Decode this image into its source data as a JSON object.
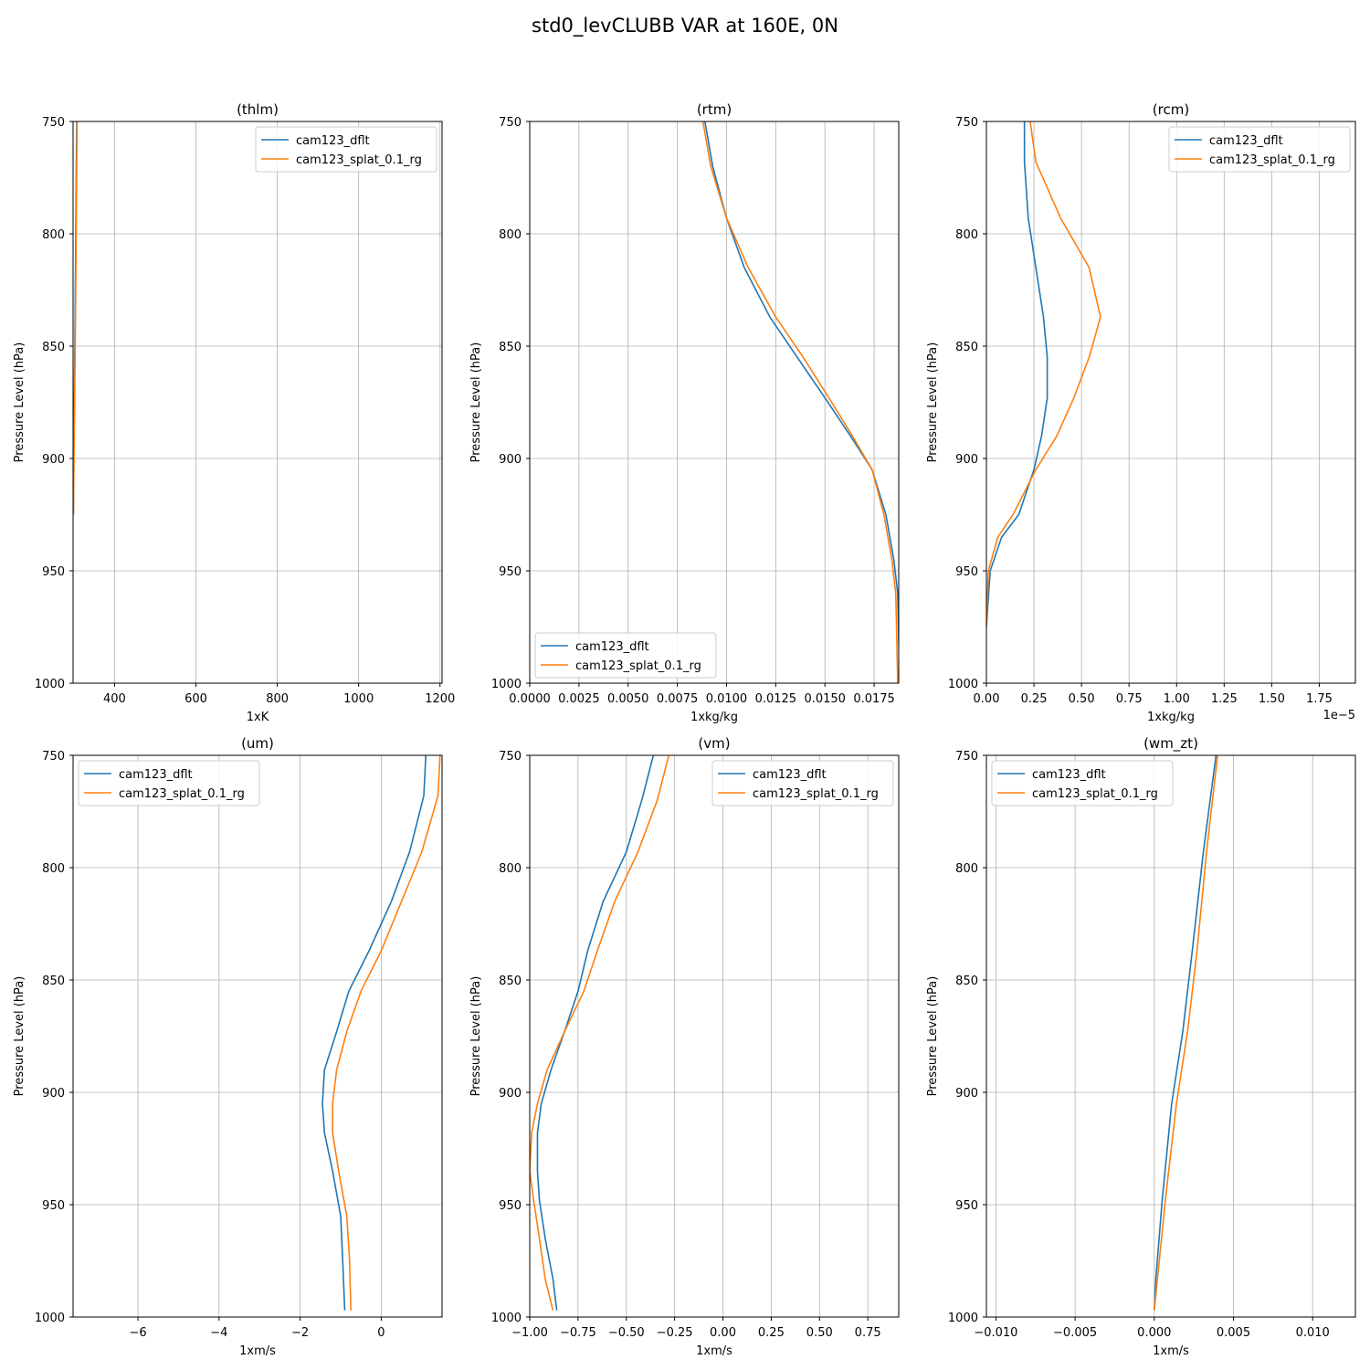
{
  "figure": {
    "title": "std0_levCLUBB VAR at 160E, 0N"
  },
  "colors": {
    "cam123_dflt": "#1f77b4",
    "cam123_splat_0.1_rg": "#ff7f0e",
    "grid": "#b0b0b0"
  },
  "chart_data": [
    {
      "type": "line",
      "title": "(thlm)",
      "xlabel": "1xK",
      "ylabel": "Pressure Level (hPa)",
      "xlim": [
        298,
        1205
      ],
      "ylim": [
        1000,
        750
      ],
      "xticks": [
        400,
        600,
        800,
        1000,
        1200
      ],
      "xtick_labels": [
        "400",
        "600",
        "800",
        "1000",
        "1200"
      ],
      "yticks": [
        750,
        800,
        850,
        900,
        950,
        1000
      ],
      "ytick_labels": [
        "750",
        "800",
        "850",
        "900",
        "950",
        "1000"
      ],
      "offset_label": "",
      "grid": true,
      "legend": "upper right",
      "series": [
        {
          "name": "cam123_dflt",
          "x": [
            307,
            306,
            305,
            304,
            303,
            302,
            301,
            300,
            299,
            299
          ],
          "y": [
            750,
            770,
            793,
            815,
            837,
            855,
            873,
            890,
            905,
            925
          ]
        },
        {
          "name": "cam123_splat_0.1_rg",
          "x": [
            308,
            307,
            306,
            305,
            304,
            303,
            302,
            301,
            300,
            299
          ],
          "y": [
            750,
            770,
            793,
            815,
            837,
            855,
            873,
            890,
            905,
            925
          ]
        }
      ]
    },
    {
      "type": "line",
      "title": "(rtm)",
      "xlabel": "1xkg/kg",
      "ylabel": "Pressure Level (hPa)",
      "xlim": [
        0,
        0.01875
      ],
      "ylim": [
        1000,
        750
      ],
      "xticks": [
        0,
        0.0025,
        0.005,
        0.0075,
        0.01,
        0.0125,
        0.015,
        0.0175
      ],
      "xtick_labels": [
        "0.0000",
        "0.0025",
        "0.0050",
        "0.0075",
        "0.0100",
        "0.0125",
        "0.0150",
        "0.0175"
      ],
      "yticks": [
        750,
        800,
        850,
        900,
        950,
        1000
      ],
      "ytick_labels": [
        "750",
        "800",
        "850",
        "900",
        "950",
        "1000"
      ],
      "offset_label": "",
      "grid": true,
      "legend": "lower left",
      "series": [
        {
          "name": "cam123_dflt",
          "x": [
            0.0089,
            0.0093,
            0.01,
            0.0109,
            0.0122,
            0.0136,
            0.015,
            0.0163,
            0.0174,
            0.0181,
            0.0185,
            0.0187,
            0.0188
          ],
          "y": [
            750,
            770,
            793,
            815,
            837,
            855,
            873,
            890,
            905,
            925,
            945,
            960,
            1000
          ]
        },
        {
          "name": "cam123_splat_0.1_rg",
          "x": [
            0.0088,
            0.0092,
            0.01,
            0.0111,
            0.0125,
            0.0139,
            0.0152,
            0.0164,
            0.0174,
            0.018,
            0.0184,
            0.0186,
            0.0187
          ],
          "y": [
            750,
            770,
            793,
            815,
            837,
            855,
            873,
            890,
            905,
            925,
            945,
            960,
            1000
          ]
        }
      ]
    },
    {
      "type": "line",
      "title": "(rcm)",
      "xlabel": "1xkg/kg",
      "ylabel": "Pressure Level (hPa)",
      "xlim": [
        0,
        1.94e-05
      ],
      "ylim": [
        1000,
        750
      ],
      "xticks": [
        0,
        2.5e-06,
        5e-06,
        7.5e-06,
        1e-05,
        1.25e-05,
        1.5e-05,
        1.75e-05
      ],
      "xtick_labels": [
        "0.00",
        "0.25",
        "0.50",
        "0.75",
        "1.00",
        "1.25",
        "1.50",
        "1.75"
      ],
      "yticks": [
        750,
        800,
        850,
        900,
        950,
        1000
      ],
      "ytick_labels": [
        "750",
        "800",
        "850",
        "900",
        "950",
        "1000"
      ],
      "offset_label": "1e−5",
      "grid": true,
      "legend": "upper right",
      "series": [
        {
          "name": "cam123_dflt",
          "x": [
            2e-06,
            2e-06,
            2.2e-06,
            2.6e-06,
            3e-06,
            3.2e-06,
            3.2e-06,
            2.9e-06,
            2.5e-06,
            1.7e-06,
            8e-07,
            2e-07,
            0
          ],
          "y": [
            750,
            768,
            793,
            815,
            837,
            855,
            873,
            890,
            905,
            925,
            935,
            950,
            975
          ]
        },
        {
          "name": "cam123_splat_0.1_rg",
          "x": [
            2.3e-06,
            2.6e-06,
            3.9e-06,
            5.4e-06,
            6e-06,
            5.4e-06,
            4.6e-06,
            3.7e-06,
            2.6e-06,
            1.4e-06,
            6e-07,
            1e-07,
            0
          ],
          "y": [
            750,
            768,
            793,
            815,
            837,
            855,
            873,
            890,
            905,
            925,
            935,
            950,
            975
          ]
        }
      ]
    },
    {
      "type": "line",
      "title": "(um)",
      "xlabel": "1xm/s",
      "ylabel": "Pressure Level (hPa)",
      "xlim": [
        -7.6,
        1.5
      ],
      "ylim": [
        1000,
        750
      ],
      "xticks": [
        -6,
        -4,
        -2,
        0
      ],
      "xtick_labels": [
        "−6",
        "−4",
        "−2",
        "0"
      ],
      "yticks": [
        750,
        800,
        850,
        900,
        950,
        1000
      ],
      "ytick_labels": [
        "750",
        "800",
        "850",
        "900",
        "950",
        "1000"
      ],
      "offset_label": "",
      "grid": true,
      "legend": "upper left",
      "series": [
        {
          "name": "cam123_dflt",
          "x": [
            1.1,
            1.05,
            0.7,
            0.25,
            -0.3,
            -0.8,
            -1.1,
            -1.4,
            -1.45,
            -1.4,
            -1.2,
            -1.0,
            -0.95,
            -0.9
          ],
          "y": [
            750,
            768,
            793,
            815,
            837,
            855,
            873,
            890,
            905,
            918,
            935,
            955,
            975,
            997
          ]
        },
        {
          "name": "cam123_splat_0.1_rg",
          "x": [
            1.45,
            1.4,
            1.0,
            0.5,
            0.0,
            -0.5,
            -0.85,
            -1.1,
            -1.2,
            -1.2,
            -1.05,
            -0.85,
            -0.78,
            -0.75
          ],
          "y": [
            750,
            768,
            793,
            815,
            837,
            855,
            873,
            890,
            905,
            918,
            935,
            955,
            975,
            997
          ]
        }
      ]
    },
    {
      "type": "line",
      "title": "(vm)",
      "xlabel": "1xm/s",
      "ylabel": "Pressure Level (hPa)",
      "xlim": [
        -1.0,
        0.91
      ],
      "ylim": [
        1000,
        750
      ],
      "xticks": [
        -1.0,
        -0.75,
        -0.5,
        -0.25,
        0.0,
        0.25,
        0.5,
        0.75
      ],
      "xtick_labels": [
        "−1.00",
        "−0.75",
        "−0.50",
        "−0.25",
        "0.00",
        "0.25",
        "0.50",
        "0.75"
      ],
      "yticks": [
        750,
        800,
        850,
        900,
        950,
        1000
      ],
      "ytick_labels": [
        "750",
        "800",
        "850",
        "900",
        "950",
        "1000"
      ],
      "offset_label": "",
      "grid": true,
      "legend": "upper right",
      "series": [
        {
          "name": "cam123_dflt",
          "x": [
            -0.36,
            -0.42,
            -0.5,
            -0.62,
            -0.7,
            -0.75,
            -0.82,
            -0.89,
            -0.94,
            -0.96,
            -0.96,
            -0.95,
            -0.92,
            -0.88,
            -0.86
          ],
          "y": [
            750,
            770,
            793,
            815,
            837,
            855,
            873,
            890,
            905,
            918,
            935,
            948,
            965,
            983,
            997
          ]
        },
        {
          "name": "cam123_splat_0.1_rg",
          "x": [
            -0.28,
            -0.34,
            -0.44,
            -0.56,
            -0.65,
            -0.72,
            -0.82,
            -0.91,
            -0.96,
            -0.99,
            -1.0,
            -0.98,
            -0.95,
            -0.92,
            -0.88
          ],
          "y": [
            750,
            770,
            793,
            815,
            837,
            855,
            873,
            890,
            905,
            918,
            935,
            948,
            965,
            983,
            997
          ]
        }
      ]
    },
    {
      "type": "line",
      "title": "(wm_zt)",
      "xlabel": "1xm/s",
      "ylabel": "Pressure Level (hPa)",
      "xlim": [
        -0.0106,
        0.0127
      ],
      "ylim": [
        1000,
        750
      ],
      "xticks": [
        -0.01,
        -0.005,
        0.0,
        0.005,
        0.01
      ],
      "xtick_labels": [
        "−0.010",
        "−0.005",
        "0.000",
        "0.005",
        "0.010"
      ],
      "yticks": [
        750,
        800,
        850,
        900,
        950,
        1000
      ],
      "ytick_labels": [
        "750",
        "800",
        "850",
        "900",
        "950",
        "1000"
      ],
      "offset_label": "",
      "grid": true,
      "legend": "upper left",
      "series": [
        {
          "name": "cam123_dflt",
          "x": [
            0.0039,
            0.0031,
            0.0024,
            0.0018,
            0.0011,
            0.0005,
            0.0001,
            0.0
          ],
          "y": [
            750,
            793,
            837,
            873,
            905,
            948,
            983,
            997
          ]
        },
        {
          "name": "cam123_splat_0.1_rg",
          "x": [
            0.004,
            0.0033,
            0.0027,
            0.0021,
            0.0014,
            0.0007,
            0.0002,
            0.0
          ],
          "y": [
            750,
            793,
            837,
            873,
            905,
            948,
            983,
            997
          ]
        }
      ]
    }
  ]
}
